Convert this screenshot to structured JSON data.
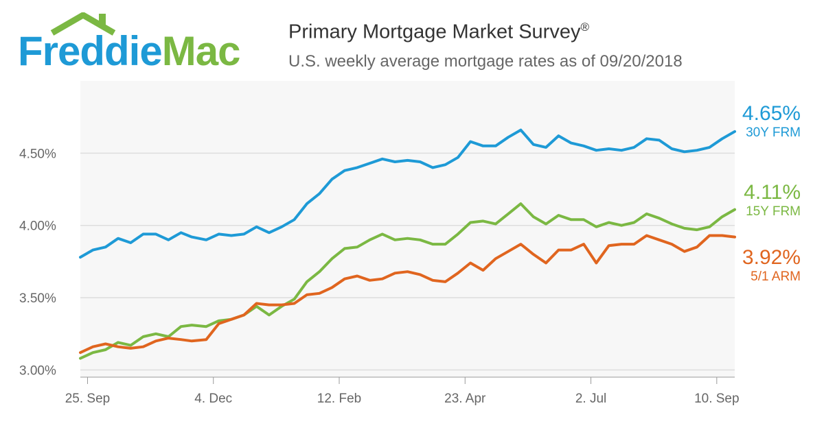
{
  "logo": {
    "part1": "Freddie",
    "part2": "Mac",
    "color1": "#1e9ad6",
    "color2": "#7bb843"
  },
  "title": "Primary Mortgage Market Survey",
  "title_mark": "®",
  "subtitle": "U.S. weekly average mortgage rates as of 09/20/2018",
  "chart_data": {
    "type": "line",
    "xlim": [
      "2017-09-21",
      "2018-09-20"
    ],
    "ylim": [
      2.95,
      5.0
    ],
    "yticks": [
      3.0,
      3.5,
      4.0,
      4.5
    ],
    "ytick_labels": [
      "3.00%",
      "3.50%",
      "4.00%",
      "4.50%"
    ],
    "xtick_labels": [
      "25. Sep",
      "4. Dec",
      "12. Feb",
      "23. Apr",
      "2. Jul",
      "10. Sep"
    ],
    "grid": "horizontal",
    "x": [
      "2017-09-21",
      "2017-09-28",
      "2017-10-05",
      "2017-10-12",
      "2017-10-19",
      "2017-10-26",
      "2017-11-02",
      "2017-11-09",
      "2017-11-16",
      "2017-11-22",
      "2017-11-30",
      "2017-12-07",
      "2017-12-14",
      "2017-12-21",
      "2017-12-28",
      "2018-01-04",
      "2018-01-11",
      "2018-01-18",
      "2018-01-25",
      "2018-02-01",
      "2018-02-08",
      "2018-02-15",
      "2018-02-22",
      "2018-03-01",
      "2018-03-08",
      "2018-03-15",
      "2018-03-22",
      "2018-03-29",
      "2018-04-05",
      "2018-04-12",
      "2018-04-19",
      "2018-04-26",
      "2018-05-03",
      "2018-05-10",
      "2018-05-17",
      "2018-05-24",
      "2018-05-31",
      "2018-06-07",
      "2018-06-14",
      "2018-06-21",
      "2018-06-28",
      "2018-07-05",
      "2018-07-12",
      "2018-07-19",
      "2018-07-26",
      "2018-08-02",
      "2018-08-09",
      "2018-08-16",
      "2018-08-23",
      "2018-08-30",
      "2018-09-06",
      "2018-09-13",
      "2018-09-20"
    ],
    "series": [
      {
        "name": "30Y FRM",
        "color": "#1e9ad6",
        "latest": "4.65%",
        "values": [
          3.78,
          3.83,
          3.85,
          3.91,
          3.88,
          3.94,
          3.94,
          3.9,
          3.95,
          3.92,
          3.9,
          3.94,
          3.93,
          3.94,
          3.99,
          3.95,
          3.99,
          4.04,
          4.15,
          4.22,
          4.32,
          4.38,
          4.4,
          4.43,
          4.46,
          4.44,
          4.45,
          4.44,
          4.4,
          4.42,
          4.47,
          4.58,
          4.55,
          4.55,
          4.61,
          4.66,
          4.56,
          4.54,
          4.62,
          4.57,
          4.55,
          4.52,
          4.53,
          4.52,
          4.54,
          4.6,
          4.59,
          4.53,
          4.51,
          4.52,
          4.54,
          4.6,
          4.65
        ]
      },
      {
        "name": "15Y FRM",
        "color": "#7bb843",
        "latest": "4.11%",
        "values": [
          3.08,
          3.12,
          3.14,
          3.19,
          3.17,
          3.23,
          3.25,
          3.23,
          3.3,
          3.31,
          3.3,
          3.34,
          3.35,
          3.38,
          3.44,
          3.38,
          3.44,
          3.49,
          3.61,
          3.68,
          3.77,
          3.84,
          3.85,
          3.9,
          3.94,
          3.9,
          3.91,
          3.9,
          3.87,
          3.87,
          3.94,
          4.02,
          4.03,
          4.01,
          4.08,
          4.15,
          4.06,
          4.01,
          4.07,
          4.04,
          4.04,
          3.99,
          4.02,
          4.0,
          4.02,
          4.08,
          4.05,
          4.01,
          3.98,
          3.97,
          3.99,
          4.06,
          4.11
        ]
      },
      {
        "name": "5/1 ARM",
        "color": "#e0651f",
        "latest": "3.92%",
        "values": [
          3.12,
          3.16,
          3.18,
          3.16,
          3.15,
          3.16,
          3.2,
          3.22,
          3.21,
          3.2,
          3.21,
          3.32,
          3.35,
          3.38,
          3.46,
          3.45,
          3.45,
          3.46,
          3.52,
          3.53,
          3.57,
          3.63,
          3.65,
          3.62,
          3.63,
          3.67,
          3.68,
          3.66,
          3.62,
          3.61,
          3.67,
          3.74,
          3.69,
          3.77,
          3.82,
          3.87,
          3.8,
          3.74,
          3.83,
          3.83,
          3.87,
          3.74,
          3.86,
          3.87,
          3.87,
          3.93,
          3.9,
          3.87,
          3.82,
          3.85,
          3.93,
          3.93,
          3.92
        ]
      }
    ]
  }
}
